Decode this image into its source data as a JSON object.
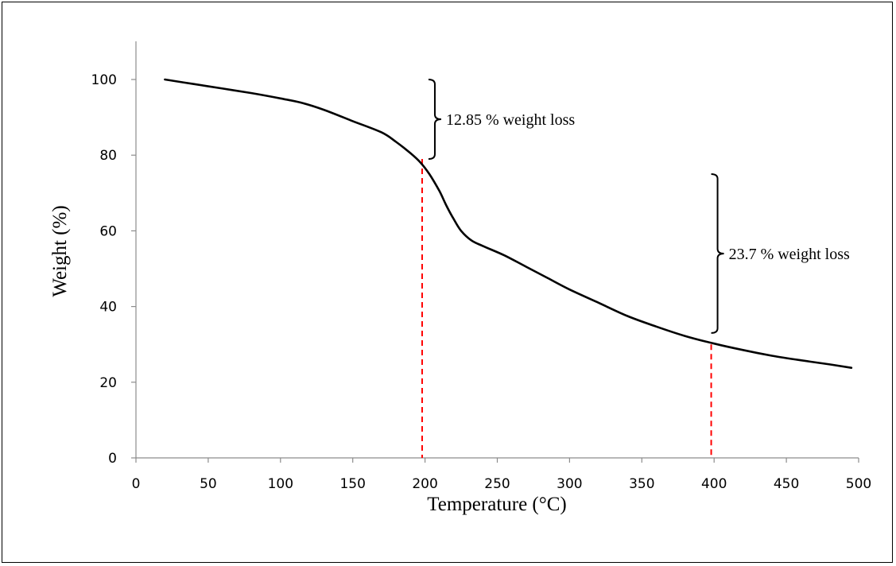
{
  "chart_data": {
    "type": "line",
    "title": "",
    "xlabel": "Temperature (°C)",
    "ylabel": "Weight (%)",
    "xlim": [
      0,
      500
    ],
    "ylim": [
      0,
      110
    ],
    "x_ticks": [
      0,
      50,
      100,
      150,
      200,
      250,
      300,
      350,
      400,
      450,
      500
    ],
    "y_ticks": [
      0,
      20,
      40,
      60,
      80,
      100
    ],
    "grid": false,
    "legend": "none",
    "series": [
      {
        "color": "#000000",
        "x": [
          20,
          40,
          60,
          80,
          100,
          115,
          130,
          150,
          170,
          180,
          190,
          197,
          203,
          210,
          215,
          220,
          225,
          232,
          240,
          255,
          270,
          285,
          300,
          320,
          340,
          360,
          380,
          400,
          420,
          440,
          460,
          480,
          495
        ],
        "y": [
          100,
          98.8,
          97.6,
          96.4,
          95,
          93.8,
          92,
          89,
          86,
          83.5,
          80.5,
          78,
          75,
          70.5,
          66.5,
          63,
          60,
          57.5,
          56,
          53.5,
          50.5,
          47.5,
          44.5,
          41,
          37.5,
          34.7,
          32.2,
          30.2,
          28.5,
          27,
          25.8,
          24.7,
          23.8
        ]
      }
    ],
    "reference_lines": [
      {
        "x": 198,
        "y_top": 79,
        "color": "#ff0000",
        "style": "dashed"
      },
      {
        "x": 398,
        "y_top": 30,
        "color": "#ff0000",
        "style": "dashed"
      }
    ],
    "annotations": [
      {
        "text": "12.85 % weight loss",
        "x": 198,
        "y_from": 79,
        "y_to": 100
      },
      {
        "text": "23.7 % weight loss",
        "x": 398,
        "y_from": 33,
        "y_to": 75
      }
    ]
  }
}
